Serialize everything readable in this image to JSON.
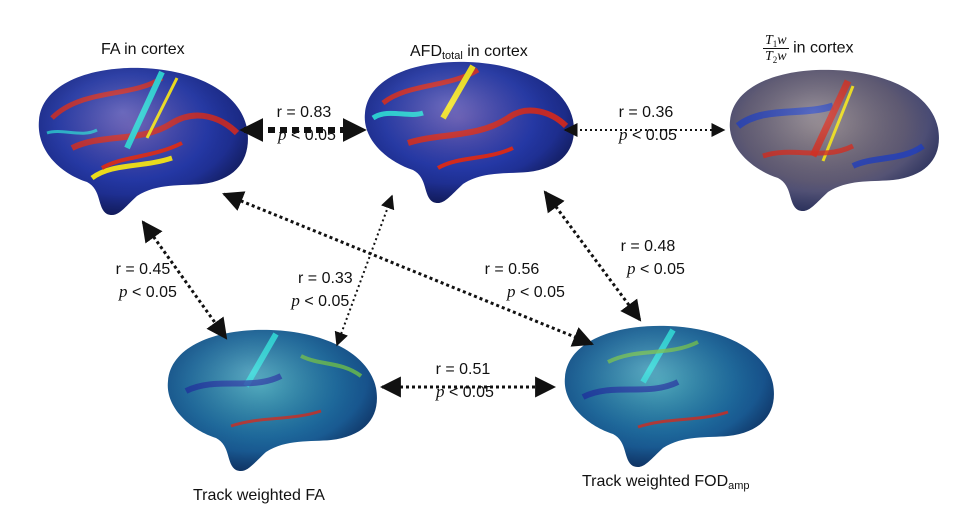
{
  "brains": [
    {
      "id": "fa",
      "label": "FA in cortex"
    },
    {
      "id": "afd",
      "label_main": "AFD",
      "label_sub": "total",
      "label_rest": " in cortex"
    },
    {
      "id": "t1t2",
      "label_num_main": "T",
      "label_num_sub": "1",
      "label_num_tail": "w",
      "label_den_main": "T",
      "label_den_sub": "2",
      "label_den_tail": "w",
      "label_rest": " in cortex"
    },
    {
      "id": "twfa",
      "label": "Track weighted FA"
    },
    {
      "id": "twfod",
      "label_main": "Track weighted FOD",
      "label_sub": "amp"
    }
  ],
  "links": [
    {
      "from": "fa",
      "to": "afd",
      "r": "r = 0.83",
      "p_italic": "p",
      "p_rest": " < 0.05"
    },
    {
      "from": "afd",
      "to": "t1t2",
      "r": "r = 0.36",
      "p_italic": "p",
      "p_rest": " < 0.05"
    },
    {
      "from": "fa",
      "to": "twfa",
      "r": "r = 0.45",
      "p_italic": "p",
      "p_rest": " < 0.05"
    },
    {
      "from": "afd",
      "to": "twfa",
      "r": "r = 0.33",
      "p_italic": "p",
      "p_rest": " < 0.05"
    },
    {
      "from": "fa",
      "to": "twfod",
      "r": "r = 0.56",
      "p_italic": "p",
      "p_rest": " < 0.05"
    },
    {
      "from": "afd",
      "to": "twfod",
      "r": "r = 0.48",
      "p_italic": "p",
      "p_rest": " < 0.05"
    },
    {
      "from": "twfa",
      "to": "twfod",
      "r": "r = 0.51",
      "p_italic": "p",
      "p_rest": " < 0.05"
    }
  ],
  "colors": {
    "arrow": "#111111",
    "surface_base_warm": "#2a3fa8",
    "surface_base_cool": "#1f6fa0",
    "hot": "#d8291b",
    "yellow": "#f2e21a",
    "cyan": "#29d3d6"
  }
}
